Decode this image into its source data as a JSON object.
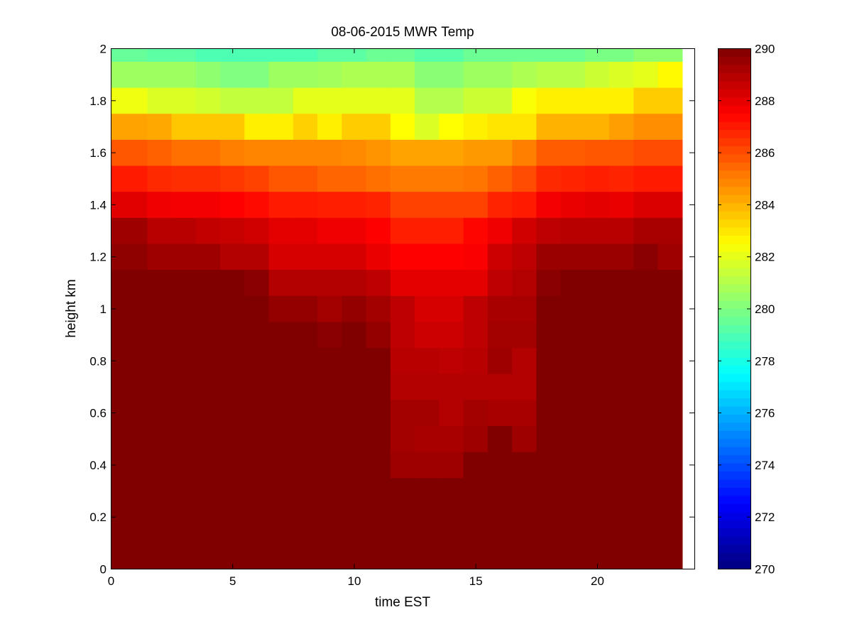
{
  "chart_data": {
    "type": "heatmap",
    "title": "08-06-2015 MWR Temp",
    "xlabel": "time EST",
    "ylabel": "height km",
    "xlim": [
      0,
      24
    ],
    "ylim": [
      0,
      2
    ],
    "xticks": [
      0,
      5,
      10,
      15,
      20
    ],
    "xtick_labels": [
      "0",
      "5",
      "10",
      "15",
      "20"
    ],
    "yticks": [
      0,
      0.2,
      0.4,
      0.6,
      0.8,
      1,
      1.2,
      1.4,
      1.6,
      1.8,
      2
    ],
    "ytick_labels": [
      "0",
      "0.2",
      "0.4",
      "0.6",
      "0.8",
      "1",
      "1.2",
      "1.4",
      "1.6",
      "1.8",
      "2"
    ],
    "colorbar": {
      "colormap": "jet",
      "clim": [
        270,
        290
      ],
      "ticks": [
        270,
        272,
        274,
        276,
        278,
        280,
        282,
        284,
        286,
        288,
        290
      ],
      "tick_labels": [
        "270",
        "272",
        "274",
        "276",
        "278",
        "280",
        "282",
        "284",
        "286",
        "288",
        "290"
      ]
    },
    "grid": false,
    "x_edges": [
      0,
      1.5,
      2.5,
      3.5,
      4.5,
      5.5,
      6.5,
      7.5,
      8.5,
      9.5,
      10.5,
      11.5,
      12.5,
      13.5,
      14.5,
      15.5,
      16.5,
      17.5,
      18.5,
      19.5,
      20.5,
      21.5,
      22.5,
      23.5
    ],
    "y_edges": [
      0,
      0.35,
      0.45,
      0.55,
      0.65,
      0.75,
      0.85,
      0.95,
      1.05,
      1.15,
      1.25,
      1.35,
      1.45,
      1.55,
      1.65,
      1.75,
      1.85,
      1.95,
      2.0
    ],
    "z": [
      [
        290,
        290,
        290,
        290,
        290,
        290,
        290,
        290,
        290,
        290,
        290,
        290,
        290,
        290,
        290,
        290,
        290,
        290,
        290,
        290,
        290,
        290,
        290
      ],
      [
        290,
        290,
        290,
        290,
        290,
        290,
        290,
        290,
        290,
        290,
        290,
        289.4,
        289.4,
        289.4,
        290,
        290,
        290,
        290,
        290,
        290,
        290,
        290,
        290
      ],
      [
        290,
        290,
        290,
        290,
        290,
        290,
        290,
        290,
        290,
        290,
        290,
        289.3,
        289.2,
        289.2,
        289.4,
        290,
        289.4,
        290,
        290,
        290,
        290,
        290,
        290
      ],
      [
        290,
        290,
        290,
        290,
        290,
        290,
        290,
        290,
        290,
        290,
        290,
        289.3,
        289.3,
        289.0,
        289.3,
        289.2,
        289.2,
        290,
        290,
        290,
        290,
        290,
        290
      ],
      [
        290,
        290,
        290,
        290,
        290,
        290,
        290,
        290,
        290,
        290,
        290,
        289.0,
        289.0,
        289.0,
        289.0,
        289.0,
        289.0,
        290,
        290,
        290,
        290,
        290,
        290
      ],
      [
        290,
        290,
        290,
        290,
        290,
        290,
        290,
        290,
        290,
        290,
        290,
        288.9,
        288.9,
        288.8,
        288.9,
        289.4,
        289.0,
        290,
        290,
        290,
        290,
        290,
        290
      ],
      [
        290,
        290,
        290,
        290,
        290,
        290,
        290,
        290,
        289.8,
        290,
        289.6,
        288.8,
        288.5,
        288.5,
        288.8,
        289.3,
        289.3,
        290,
        290,
        290,
        290,
        290,
        290
      ],
      [
        290,
        290,
        290,
        290,
        290,
        290,
        289.6,
        289.6,
        289.3,
        289.6,
        289.3,
        288.8,
        288.3,
        288.3,
        288.8,
        289.2,
        289.2,
        290,
        290,
        290,
        290,
        290,
        290
      ],
      [
        290,
        290,
        290,
        290,
        290,
        289.8,
        289.0,
        289.0,
        289.0,
        289.0,
        288.8,
        288.0,
        288.0,
        288.0,
        288.0,
        288.8,
        289.0,
        289.8,
        290,
        290,
        290,
        290,
        290
      ],
      [
        289.7,
        289.4,
        289.4,
        289.4,
        289.0,
        289.0,
        288.3,
        288.3,
        288.3,
        288.3,
        287.9,
        287.5,
        287.5,
        287.5,
        287.6,
        288.5,
        288.8,
        289.5,
        289.5,
        289.5,
        289.5,
        289.8,
        289.4
      ],
      [
        289.4,
        288.9,
        288.9,
        288.7,
        288.6,
        288.4,
        288.0,
        288.0,
        287.8,
        287.8,
        287.5,
        286.9,
        286.9,
        286.9,
        287.4,
        287.8,
        288.4,
        288.8,
        288.9,
        288.9,
        288.9,
        289.2,
        289.2
      ],
      [
        288.1,
        287.8,
        287.7,
        287.7,
        287.5,
        287.3,
        287.0,
        287.0,
        286.9,
        286.9,
        286.8,
        286.2,
        286.2,
        286.2,
        286.2,
        286.8,
        287.0,
        287.7,
        287.9,
        288.0,
        287.9,
        288.2,
        288.2
      ],
      [
        287.0,
        286.7,
        286.6,
        286.6,
        286.4,
        286.2,
        285.8,
        285.8,
        285.5,
        285.5,
        285.3,
        285.1,
        285.1,
        285.1,
        285.2,
        285.6,
        286.0,
        286.7,
        286.8,
        286.9,
        286.8,
        287.0,
        287.0
      ],
      [
        285.8,
        285.6,
        285.3,
        285.3,
        285.0,
        284.9,
        284.9,
        284.9,
        284.9,
        284.8,
        284.6,
        284.3,
        284.3,
        284.3,
        284.5,
        284.5,
        285.0,
        285.7,
        285.7,
        285.8,
        285.8,
        286.0,
        286.0
      ],
      [
        284.3,
        284.2,
        283.6,
        283.6,
        283.6,
        282.8,
        282.8,
        283.4,
        282.8,
        283.5,
        283.5,
        282.5,
        281.8,
        282.5,
        282.8,
        283.0,
        283.0,
        284.0,
        284.0,
        284.0,
        284.4,
        284.7,
        284.7
      ],
      [
        282.2,
        281.8,
        281.8,
        281.6,
        281.3,
        281.3,
        281.3,
        282.0,
        282.0,
        282.0,
        282.0,
        282.0,
        281.0,
        281.0,
        281.5,
        281.5,
        282.4,
        282.8,
        282.8,
        282.8,
        282.8,
        283.5,
        283.5
      ],
      [
        280.6,
        280.6,
        280.6,
        280.3,
        280.0,
        280.0,
        280.6,
        280.6,
        280.7,
        280.9,
        280.9,
        280.9,
        280.2,
        280.2,
        280.6,
        280.6,
        280.9,
        281.1,
        281.1,
        281.5,
        281.8,
        282.0,
        282.6
      ],
      [
        279.5,
        279.3,
        279.3,
        279.0,
        279.0,
        279.0,
        279.0,
        279.0,
        279.3,
        279.3,
        279.6,
        279.6,
        279.2,
        279.2,
        279.6,
        279.6,
        279.6,
        279.6,
        279.6,
        279.9,
        279.9,
        280.3,
        280.3
      ]
    ]
  }
}
